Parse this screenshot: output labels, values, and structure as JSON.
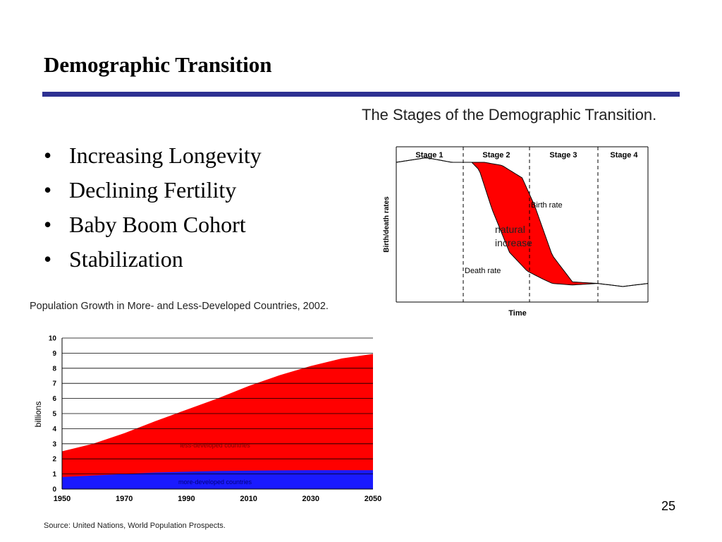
{
  "slide": {
    "title": "Demographic Transition",
    "page_number": "25",
    "bullets": [
      "Increasing Longevity",
      "Declining Fertility",
      "Baby Boom Cohort",
      "Stabilization"
    ],
    "bullet_symbol": "•",
    "rule_color": "#2e3192"
  },
  "chart_data": [
    {
      "type": "line",
      "title": "The Stages of the Demographic Transition.",
      "xlabel": "Time",
      "ylabel": "Birth/death rates",
      "stages": [
        "Stage 1",
        "Stage 2",
        "Stage 3",
        "Stage 4"
      ],
      "series": [
        {
          "name": "Birth rate",
          "x": [
            0,
            0.12,
            0.22,
            0.3,
            0.35,
            0.42,
            0.5,
            0.55,
            0.62,
            0.7,
            0.8,
            0.9,
            1.0
          ],
          "values": [
            0.9,
            0.93,
            0.9,
            0.9,
            0.9,
            0.88,
            0.8,
            0.62,
            0.3,
            0.13,
            0.12,
            0.1,
            0.12
          ]
        },
        {
          "name": "Death rate",
          "x": [
            0,
            0.12,
            0.22,
            0.3,
            0.33,
            0.38,
            0.45,
            0.52,
            0.58,
            0.62,
            0.7,
            0.8,
            0.9,
            1.0
          ],
          "values": [
            0.9,
            0.93,
            0.9,
            0.9,
            0.85,
            0.6,
            0.32,
            0.2,
            0.15,
            0.12,
            0.11,
            0.12,
            0.1,
            0.12
          ]
        }
      ],
      "annotations": [
        "natural",
        "increase"
      ],
      "fill_color": "#ff0000"
    },
    {
      "type": "area",
      "title": "Population Growth in More- and Less-Developed Countries, 2002.",
      "ylabel": "billions",
      "xlabel": "",
      "x": [
        1950,
        1960,
        1970,
        1980,
        1990,
        2000,
        2010,
        2020,
        2030,
        2040,
        2050
      ],
      "xticks": [
        1950,
        1970,
        1990,
        2010,
        2030,
        2050
      ],
      "ylim": [
        0,
        10
      ],
      "yticks": [
        0,
        1,
        2,
        3,
        4,
        5,
        6,
        7,
        8,
        9,
        10
      ],
      "grid": true,
      "series": [
        {
          "name": "more-developed countries",
          "values": [
            0.8,
            0.9,
            1.0,
            1.1,
            1.15,
            1.2,
            1.22,
            1.24,
            1.25,
            1.25,
            1.25
          ],
          "color": "#1a1aff"
        },
        {
          "name": "less-developed countries",
          "values": [
            1.7,
            2.1,
            2.7,
            3.4,
            4.1,
            4.8,
            5.6,
            6.3,
            6.9,
            7.4,
            7.7
          ],
          "color": "#ff0000"
        }
      ],
      "source": "Source: United Nations, World Population Prospects."
    }
  ]
}
